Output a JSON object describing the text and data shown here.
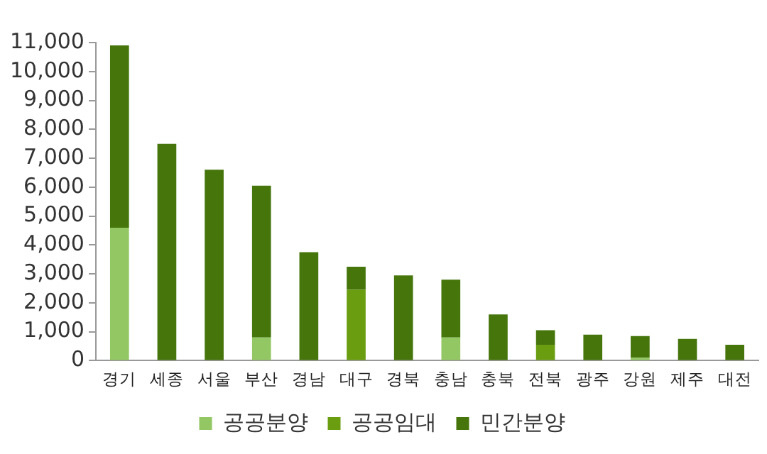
{
  "chart_data": {
    "type": "bar",
    "stacked": true,
    "categories": [
      "경기",
      "세종",
      "서울",
      "부산",
      "경남",
      "대구",
      "경북",
      "충남",
      "충북",
      "전북",
      "광주",
      "강원",
      "제주",
      "대전"
    ],
    "series": [
      {
        "name": "공공분양",
        "color": "#93c763",
        "values": [
          4600,
          0,
          0,
          800,
          0,
          0,
          0,
          800,
          0,
          0,
          0,
          100,
          0,
          0
        ]
      },
      {
        "name": "공공임대",
        "color": "#6a9d10",
        "values": [
          0,
          0,
          0,
          0,
          0,
          2450,
          0,
          0,
          0,
          550,
          0,
          0,
          0,
          0
        ]
      },
      {
        "name": "민간분양",
        "color": "#45750b",
        "values": [
          6300,
          7500,
          6600,
          5250,
          3750,
          800,
          2950,
          2000,
          1600,
          500,
          900,
          750,
          750,
          550
        ]
      }
    ],
    "ylim": [
      0,
      11000
    ],
    "yticks": [
      0,
      {
        "value": 1000,
        "label": "1,000"
      },
      {
        "value": 2000,
        "label": "2,000"
      },
      {
        "value": 3000,
        "label": "3,000"
      },
      {
        "value": 4000,
        "label": "4,000"
      },
      {
        "value": 5000,
        "label": "5,000"
      },
      {
        "value": 6000,
        "label": "6,000"
      },
      {
        "value": 7000,
        "label": "7,000"
      },
      {
        "value": 8000,
        "label": "8,000"
      },
      {
        "value": 9000,
        "label": "9,000"
      },
      {
        "value": 10000,
        "label": "10,000"
      },
      {
        "value": 11000,
        "label": "11,000"
      }
    ],
    "grid": false,
    "legend": "bottom"
  }
}
